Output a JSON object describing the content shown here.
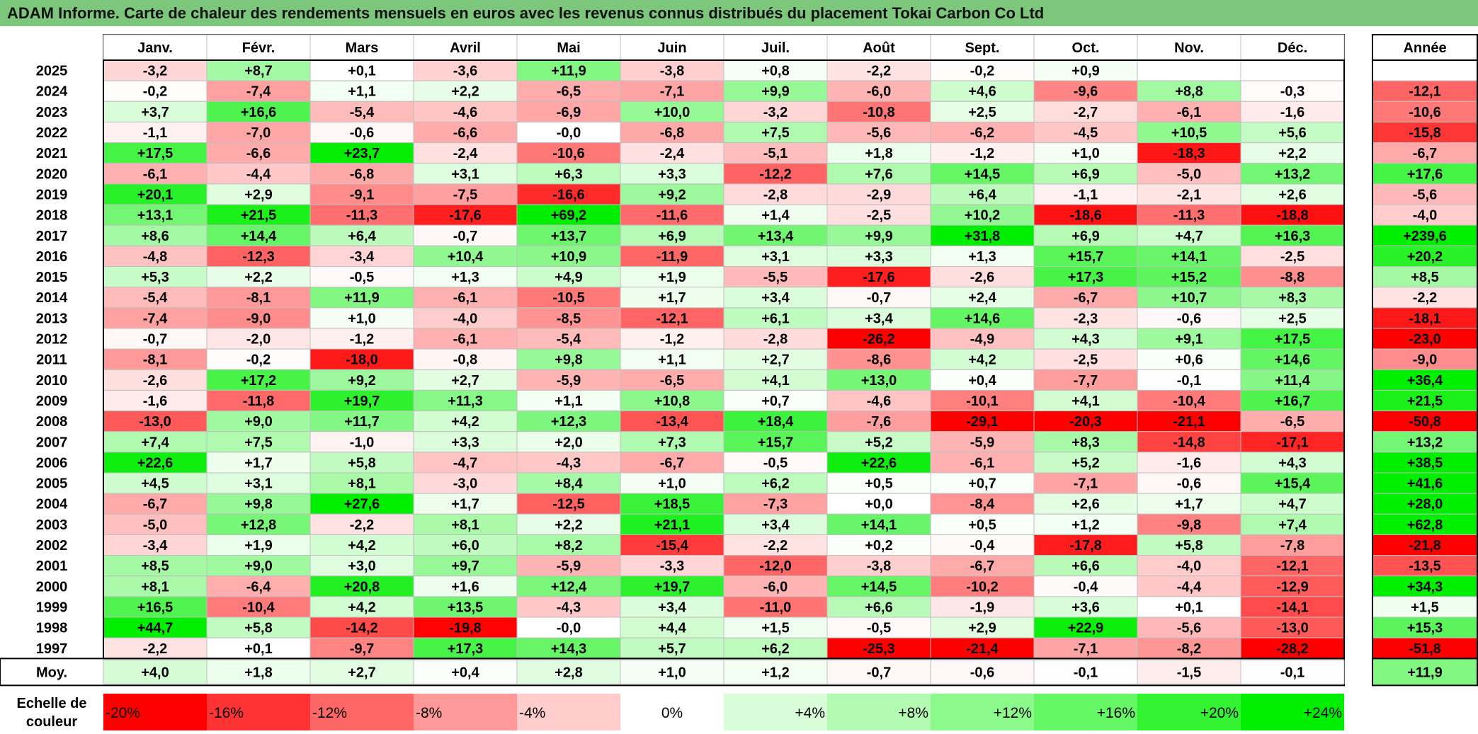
{
  "title": "ADAM Informe. Carte de chaleur des rendements mensuels en euros avec les revenus connus distribués du placement Tokai Carbon Co Ltd",
  "chart_data": {
    "type": "heatmap",
    "title": "ADAM Informe. Carte de chaleur des rendements mensuels en euros avec les revenus connus distribués du placement Tokai Carbon Co Ltd",
    "columns": [
      "Janv.",
      "Févr.",
      "Mars",
      "Avril",
      "Mai",
      "Juin",
      "Juil.",
      "Août",
      "Sept.",
      "Oct.",
      "Nov.",
      "Déc."
    ],
    "annual_header": "Année",
    "average_label": "Moy.",
    "rows": [
      {
        "year": "2025",
        "values": [
          "-3,2",
          "+8,7",
          "+0,1",
          "-3,6",
          "+11,9",
          "-3,8",
          "+0,8",
          "-2,2",
          "-0,2",
          "+0,9",
          "",
          ""
        ],
        "annual": ""
      },
      {
        "year": "2024",
        "values": [
          "-0,2",
          "-7,4",
          "+1,1",
          "+2,2",
          "-6,5",
          "-7,1",
          "+9,9",
          "-6,0",
          "+4,6",
          "-9,6",
          "+8,8",
          "-0,3"
        ],
        "annual": "-12,1"
      },
      {
        "year": "2023",
        "values": [
          "+3,7",
          "+16,6",
          "-5,4",
          "-4,6",
          "-6,9",
          "+10,0",
          "-3,2",
          "-10,8",
          "+2,5",
          "-2,7",
          "-6,1",
          "-1,6"
        ],
        "annual": "-10,6"
      },
      {
        "year": "2022",
        "values": [
          "-1,1",
          "-7,0",
          "-0,6",
          "-6,6",
          "-0,0",
          "-6,8",
          "+7,5",
          "-5,6",
          "-6,2",
          "-4,5",
          "+10,5",
          "+5,6"
        ],
        "annual": "-15,8"
      },
      {
        "year": "2021",
        "values": [
          "+17,5",
          "-6,6",
          "+23,7",
          "-2,4",
          "-10,6",
          "-2,4",
          "-5,1",
          "+1,8",
          "-1,2",
          "+1,0",
          "-18,3",
          "+2,2"
        ],
        "annual": "-6,7"
      },
      {
        "year": "2020",
        "values": [
          "-6,1",
          "-4,4",
          "-6,8",
          "+3,1",
          "+6,3",
          "+3,3",
          "-12,2",
          "+7,6",
          "+14,5",
          "+6,9",
          "-5,0",
          "+13,2"
        ],
        "annual": "+17,6"
      },
      {
        "year": "2019",
        "values": [
          "+20,1",
          "+2,9",
          "-9,1",
          "-7,5",
          "-16,6",
          "+9,2",
          "-2,8",
          "-2,9",
          "+6,4",
          "-1,1",
          "-2,1",
          "+2,6"
        ],
        "annual": "-5,6"
      },
      {
        "year": "2018",
        "values": [
          "+13,1",
          "+21,5",
          "-11,3",
          "-17,6",
          "+69,2",
          "-11,6",
          "+1,4",
          "-2,5",
          "+10,2",
          "-18,6",
          "-11,3",
          "-18,8"
        ],
        "annual": "-4,0"
      },
      {
        "year": "2017",
        "values": [
          "+8,6",
          "+14,4",
          "+6,4",
          "-0,7",
          "+13,7",
          "+6,9",
          "+13,4",
          "+9,9",
          "+31,8",
          "+6,9",
          "+4,7",
          "+16,3"
        ],
        "annual": "+239,6"
      },
      {
        "year": "2016",
        "values": [
          "-4,8",
          "-12,3",
          "-3,4",
          "+10,4",
          "+10,9",
          "-11,9",
          "+3,1",
          "+3,3",
          "+1,3",
          "+15,7",
          "+14,1",
          "-2,5"
        ],
        "annual": "+20,2"
      },
      {
        "year": "2015",
        "values": [
          "+5,3",
          "+2,2",
          "-0,5",
          "+1,3",
          "+4,9",
          "+1,9",
          "-5,5",
          "-17,6",
          "-2,6",
          "+17,3",
          "+15,2",
          "-8,8"
        ],
        "annual": "+8,5"
      },
      {
        "year": "2014",
        "values": [
          "-5,4",
          "-8,1",
          "+11,9",
          "-6,1",
          "-10,5",
          "+1,7",
          "+3,4",
          "-0,7",
          "+2,4",
          "-6,7",
          "+10,7",
          "+8,3"
        ],
        "annual": "-2,2"
      },
      {
        "year": "2013",
        "values": [
          "-7,4",
          "-9,0",
          "+1,0",
          "-4,0",
          "-8,5",
          "-12,1",
          "+6,1",
          "+3,4",
          "+14,6",
          "-2,3",
          "-0,6",
          "+2,5"
        ],
        "annual": "-18,1"
      },
      {
        "year": "2012",
        "values": [
          "-0,7",
          "-2,0",
          "-1,2",
          "-6,1",
          "-5,4",
          "-1,2",
          "-2,8",
          "-26,2",
          "-4,9",
          "+4,3",
          "+9,1",
          "+17,5"
        ],
        "annual": "-23,0"
      },
      {
        "year": "2011",
        "values": [
          "-8,1",
          "-0,2",
          "-18,0",
          "-0,8",
          "+9,8",
          "+1,1",
          "+2,7",
          "-8,6",
          "+4,2",
          "-2,5",
          "+0,6",
          "+14,6"
        ],
        "annual": "-9,0"
      },
      {
        "year": "2010",
        "values": [
          "-2,6",
          "+17,2",
          "+9,2",
          "+2,7",
          "-5,9",
          "-6,5",
          "+4,1",
          "+13,0",
          "+0,4",
          "-7,7",
          "-0,1",
          "+11,4"
        ],
        "annual": "+36,4"
      },
      {
        "year": "2009",
        "values": [
          "-1,6",
          "-11,8",
          "+19,7",
          "+11,3",
          "+1,1",
          "+10,8",
          "+0,7",
          "-4,6",
          "-10,1",
          "+4,1",
          "-10,4",
          "+16,7"
        ],
        "annual": "+21,5"
      },
      {
        "year": "2008",
        "values": [
          "-13,0",
          "+9,0",
          "+11,7",
          "+4,2",
          "+12,3",
          "-13,4",
          "+18,4",
          "-7,6",
          "-29,1",
          "-20,3",
          "-21,1",
          "-6,5"
        ],
        "annual": "-50,8"
      },
      {
        "year": "2007",
        "values": [
          "+7,4",
          "+7,5",
          "-1,0",
          "+3,3",
          "+2,0",
          "+7,3",
          "+15,7",
          "+5,2",
          "-5,9",
          "+8,3",
          "-14,8",
          "-17,1"
        ],
        "annual": "+13,2"
      },
      {
        "year": "2006",
        "values": [
          "+22,6",
          "+1,7",
          "+5,8",
          "-4,7",
          "-4,3",
          "-6,7",
          "-0,5",
          "+22,6",
          "-6,1",
          "+5,2",
          "-1,6",
          "+4,3"
        ],
        "annual": "+38,5"
      },
      {
        "year": "2005",
        "values": [
          "+4,5",
          "+3,1",
          "+8,1",
          "-3,0",
          "+8,4",
          "+1,0",
          "+6,2",
          "+0,5",
          "+0,7",
          "-7,1",
          "-0,6",
          "+15,4"
        ],
        "annual": "+41,6"
      },
      {
        "year": "2004",
        "values": [
          "-6,7",
          "+9,8",
          "+27,6",
          "+1,7",
          "-12,5",
          "+18,5",
          "-7,3",
          "+0,0",
          "-8,4",
          "+2,6",
          "+1,7",
          "+4,7"
        ],
        "annual": "+28,0"
      },
      {
        "year": "2003",
        "values": [
          "-5,0",
          "+12,8",
          "-2,2",
          "+8,1",
          "+2,2",
          "+21,1",
          "+3,4",
          "+14,1",
          "+0,5",
          "+1,2",
          "-9,8",
          "+7,4"
        ],
        "annual": "+62,8"
      },
      {
        "year": "2002",
        "values": [
          "-3,4",
          "+1,9",
          "+4,2",
          "+6,0",
          "+8,2",
          "-15,4",
          "-2,2",
          "+0,2",
          "-0,4",
          "-17,8",
          "+5,8",
          "-7,8"
        ],
        "annual": "-21,8"
      },
      {
        "year": "2001",
        "values": [
          "+8,5",
          "+9,0",
          "+3,0",
          "+9,7",
          "-5,9",
          "-3,3",
          "-12,0",
          "-3,8",
          "-6,7",
          "+6,6",
          "-4,0",
          "-12,1"
        ],
        "annual": "-13,5"
      },
      {
        "year": "2000",
        "values": [
          "+8,1",
          "-6,4",
          "+20,8",
          "+1,6",
          "+12,4",
          "+19,7",
          "-6,0",
          "+14,5",
          "-10,2",
          "-0,4",
          "-4,4",
          "-12,9"
        ],
        "annual": "+34,3"
      },
      {
        "year": "1999",
        "values": [
          "+16,5",
          "-10,4",
          "+4,2",
          "+13,5",
          "-4,3",
          "+3,4",
          "-11,0",
          "+6,6",
          "-1,9",
          "+3,6",
          "+0,1",
          "-14,1"
        ],
        "annual": "+1,5"
      },
      {
        "year": "1998",
        "values": [
          "+44,7",
          "+5,8",
          "-14,2",
          "-19,8",
          "-0,0",
          "+4,4",
          "+1,5",
          "-0,5",
          "+2,9",
          "+22,9",
          "-5,6",
          "-13,0"
        ],
        "annual": "+15,3"
      },
      {
        "year": "1997",
        "values": [
          "-2,2",
          "+0,1",
          "-9,7",
          "+17,3",
          "+14,3",
          "+5,7",
          "+6,2",
          "-25,3",
          "-21,4",
          "-7,1",
          "-8,2",
          "-28,2"
        ],
        "annual": "-51,8"
      }
    ],
    "averages": [
      "+4,0",
      "+1,8",
      "+2,7",
      "+0,4",
      "+2,8",
      "+1,0",
      "+1,2",
      "-0,7",
      "-0,6",
      "-0,1",
      "-1,5",
      "-0,1"
    ],
    "average_annual": "+11,9",
    "scale_label": "Echelle de couleur",
    "scale": [
      {
        "label": "-20%",
        "value": -20,
        "color": "#ff0000"
      },
      {
        "label": "-16%",
        "value": -16,
        "color": "#ff3333"
      },
      {
        "label": "-12%",
        "value": -12,
        "color": "#ff6666"
      },
      {
        "label": "-8%",
        "value": -8,
        "color": "#ff9999"
      },
      {
        "label": "-4%",
        "value": -4,
        "color": "#ffcccc"
      },
      {
        "label": "0%",
        "value": 0,
        "color": "#ffffff"
      },
      {
        "label": "+4%",
        "value": 4,
        "color": "#d9fdd9"
      },
      {
        "label": "+8%",
        "value": 8,
        "color": "#b3fbb3"
      },
      {
        "label": "+12%",
        "value": 12,
        "color": "#8cf98c"
      },
      {
        "label": "+16%",
        "value": 16,
        "color": "#66f766"
      },
      {
        "label": "+20%",
        "value": 20,
        "color": "#33f333"
      },
      {
        "label": "+24%",
        "value": 24,
        "color": "#00ee00"
      }
    ],
    "colors": {
      "title_bar": "#7cc77c",
      "max_negative": "#ff0000",
      "max_positive": "#00ee00",
      "neutral": "#ffffff"
    }
  }
}
